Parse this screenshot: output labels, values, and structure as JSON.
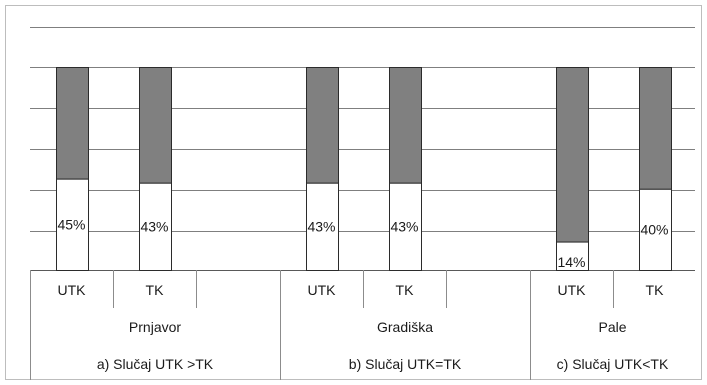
{
  "chart_data": {
    "type": "bar",
    "stacked": true,
    "ylim": [
      0,
      100
    ],
    "grid": true,
    "groups": [
      {
        "name": "Prnjavor",
        "case_label": "a) Slučaj UTK >TK",
        "bars": [
          {
            "category": "UTK",
            "value": 45,
            "label": "45%"
          },
          {
            "category": "TK",
            "value": 43,
            "label": "43%"
          }
        ]
      },
      {
        "name": "Gradiška",
        "case_label": "b) Slučaj UTK=TK",
        "bars": [
          {
            "category": "UTK",
            "value": 43,
            "label": "43%"
          },
          {
            "category": "TK",
            "value": 43,
            "label": "43%"
          }
        ]
      },
      {
        "name": "Pale",
        "case_label": "c) Slučaj UTK<TK",
        "bars": [
          {
            "category": "UTK",
            "value": 14,
            "label": "14%"
          },
          {
            "category": "TK",
            "value": 40,
            "label": "40%"
          }
        ]
      }
    ]
  },
  "colors": {
    "upper_segment": "#808080",
    "lower_segment": "#ffffff"
  }
}
